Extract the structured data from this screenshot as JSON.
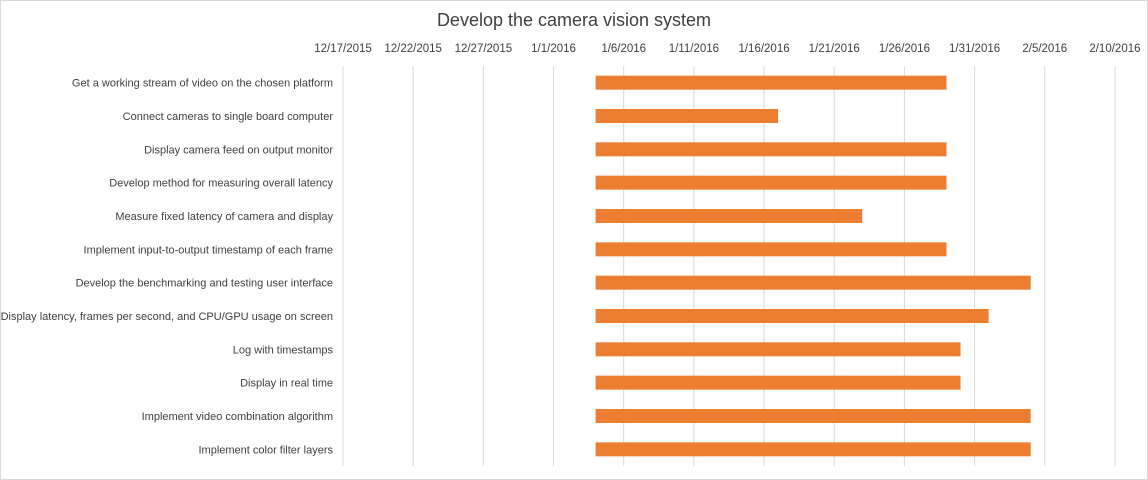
{
  "chart_data": {
    "type": "bar",
    "orientation": "horizontal",
    "subtype": "gantt",
    "title": "Develop the camera vision system",
    "xlabel": "",
    "ylabel": "",
    "x_axis_position": "top",
    "x_ticks": [
      "12/17/2015",
      "12/22/2015",
      "12/27/2015",
      "1/1/2016",
      "1/6/2016",
      "1/11/2016",
      "1/16/2016",
      "1/21/2016",
      "1/26/2016",
      "1/31/2016",
      "2/5/2016",
      "2/10/2016"
    ],
    "xlim": [
      "2015-12-17",
      "2016-02-12"
    ],
    "grid": "vertical",
    "legend": "none",
    "bar_color": "#ed7d31",
    "tasks": [
      {
        "name": "Get a working stream of video on the chosen platform",
        "start": "2016-01-04",
        "end": "2016-01-29"
      },
      {
        "name": "Connect cameras to single board computer",
        "start": "2016-01-04",
        "end": "2016-01-17"
      },
      {
        "name": "Display camera feed on output monitor",
        "start": "2016-01-04",
        "end": "2016-01-29"
      },
      {
        "name": "Develop method for measuring overall latency",
        "start": "2016-01-04",
        "end": "2016-01-29"
      },
      {
        "name": "Measure fixed latency of camera and display",
        "start": "2016-01-04",
        "end": "2016-01-23"
      },
      {
        "name": "Implement input-to-output timestamp of each frame",
        "start": "2016-01-04",
        "end": "2016-01-29"
      },
      {
        "name": "Develop the benchmarking and testing user interface",
        "start": "2016-01-04",
        "end": "2016-02-04"
      },
      {
        "name": "Display latency, frames per second, and CPU/GPU usage on screen",
        "start": "2016-01-04",
        "end": "2016-02-01"
      },
      {
        "name": "Log with timestamps",
        "start": "2016-01-04",
        "end": "2016-01-30"
      },
      {
        "name": "Display in real time",
        "start": "2016-01-04",
        "end": "2016-01-30"
      },
      {
        "name": "Implement video combination algorithm",
        "start": "2016-01-04",
        "end": "2016-02-04"
      },
      {
        "name": "Implement color filter layers",
        "start": "2016-01-04",
        "end": "2016-02-04"
      }
    ]
  }
}
